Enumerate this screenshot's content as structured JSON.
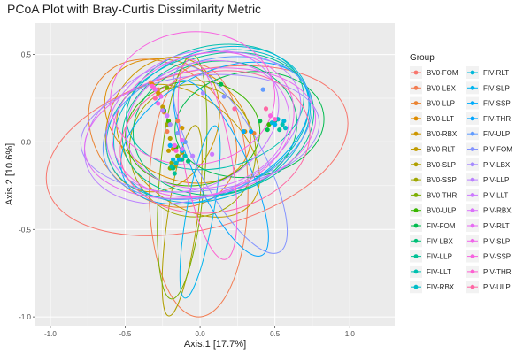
{
  "chart_data": {
    "type": "scatter",
    "title": "PCoA Plot with Bray-Curtis Dissimilarity Metric",
    "xlabel": "Axis.1   [17.7%]",
    "ylabel": "Axis.2   [10.6%]",
    "xlim": [
      -1.1,
      1.3
    ],
    "ylim": [
      -1.05,
      0.68
    ],
    "x_ticks": [
      -1.0,
      -0.5,
      0.0,
      0.5,
      1.0
    ],
    "x_tick_labels": [
      "-1.0",
      "-0.5",
      "0.0",
      "0.5",
      "1.0"
    ],
    "y_ticks": [
      -1.0,
      -0.5,
      0.0,
      0.5
    ],
    "y_tick_labels": [
      "-1.0",
      "-0.5",
      "0.0",
      "0.5"
    ],
    "grid": true,
    "legend_title": "Group",
    "legend_position": "right",
    "legend_columns": 2,
    "series": [
      {
        "name": "BV0-FOM",
        "color": "#F8766D",
        "points": [
          [
            -0.33,
            0.34
          ],
          [
            -0.3,
            0.3
          ],
          [
            -0.27,
            0.27
          ]
        ],
        "ellipse": {
          "cx": -0.02,
          "cy": -0.05,
          "rx": 1.03,
          "ry": 0.45,
          "angle": 14
        }
      },
      {
        "name": "BV0-LBX",
        "color": "#F27D52",
        "points": [
          [
            -0.28,
            0.3
          ],
          [
            -0.22,
            0.06
          ],
          [
            -0.15,
            0.12
          ]
        ],
        "ellipse": {
          "cx": -0.01,
          "cy": -0.28,
          "rx": 0.33,
          "ry": 0.72,
          "angle": 0
        }
      },
      {
        "name": "BV0-LLP",
        "color": "#EA8331",
        "points": [
          [
            -0.24,
            0.17
          ],
          [
            -0.2,
            -0.02
          ],
          [
            0.36,
            0.05
          ]
        ],
        "ellipse": {
          "cx": -0.25,
          "cy": 0.05,
          "rx": 0.55,
          "ry": 0.37,
          "angle": -45
        }
      },
      {
        "name": "BV0-LLT",
        "color": "#DE8C00",
        "points": [
          [
            -0.32,
            0.33
          ],
          [
            -0.18,
            -0.04
          ],
          [
            0.3,
            0.06
          ]
        ],
        "ellipse": {
          "cx": -0.15,
          "cy": 0.12,
          "rx": 0.52,
          "ry": 0.32,
          "angle": -30
        }
      },
      {
        "name": "BV0-RBX",
        "color": "#CD9600",
        "points": [
          [
            -0.28,
            0.28
          ],
          [
            -0.2,
            0.1
          ],
          [
            -0.12,
            0.08
          ]
        ],
        "ellipse": {
          "cx": -0.25,
          "cy": 0.1,
          "rx": 0.36,
          "ry": 0.4,
          "angle": -25
        }
      },
      {
        "name": "BV0-RLT",
        "color": "#C09B00",
        "points": [
          [
            -0.25,
            0.2
          ],
          [
            -0.21,
            -0.05
          ],
          [
            -0.13,
            -0.1
          ]
        ],
        "ellipse": {
          "cx": -0.08,
          "cy": -0.05,
          "rx": 0.55,
          "ry": 0.3,
          "angle": -40
        }
      },
      {
        "name": "BV0-SLP",
        "color": "#B09F00",
        "points": [
          [
            -0.2,
            0.02
          ],
          [
            -0.17,
            -0.14
          ],
          [
            -0.12,
            -0.06
          ]
        ],
        "ellipse": {
          "cx": -0.12,
          "cy": -0.45,
          "rx": 0.1,
          "ry": 0.55,
          "angle": -8
        }
      },
      {
        "name": "BV0-SSP",
        "color": "#9EA700",
        "points": [
          [
            -0.22,
            0.1
          ],
          [
            -0.19,
            -0.12
          ],
          [
            -0.1,
            0.0
          ]
        ],
        "ellipse": {
          "cx": -0.05,
          "cy": -0.05,
          "rx": 0.42,
          "ry": 0.38,
          "angle": 15
        }
      },
      {
        "name": "BV0-THR",
        "color": "#7CAE00",
        "points": [
          [
            -0.22,
            0.31
          ],
          [
            -0.2,
            -0.15
          ],
          [
            -0.15,
            -0.08
          ]
        ],
        "ellipse": {
          "cx": -0.12,
          "cy": -0.2,
          "rx": 0.15,
          "ry": 0.7,
          "angle": -5
        }
      },
      {
        "name": "BV0-ULP",
        "color": "#39B600",
        "points": [
          [
            -0.21,
            0.12
          ],
          [
            -0.16,
            -0.03
          ],
          [
            0.46,
            0.1
          ]
        ],
        "ellipse": {
          "cx": -0.05,
          "cy": 0.05,
          "rx": 0.45,
          "ry": 0.3,
          "angle": 5
        }
      },
      {
        "name": "FIV-FOM",
        "color": "#00BB4E",
        "points": [
          [
            -0.24,
            0.18
          ],
          [
            0.14,
            0.33
          ],
          [
            0.4,
            0.12
          ],
          [
            0.45,
            0.07
          ]
        ],
        "ellipse": {
          "cx": 0.33,
          "cy": 0.1,
          "rx": 0.5,
          "ry": 0.3,
          "angle": 8
        }
      },
      {
        "name": "FIV-LBX",
        "color": "#00BF77",
        "points": [
          [
            -0.18,
            -0.15
          ],
          [
            -0.08,
            -0.11
          ],
          [
            0.5,
            0.12
          ]
        ],
        "ellipse": {
          "cx": 0.1,
          "cy": 0.08,
          "rx": 0.55,
          "ry": 0.38,
          "angle": 10
        }
      },
      {
        "name": "FIV-LLP",
        "color": "#00C094",
        "points": [
          [
            -0.17,
            -0.18
          ],
          [
            -0.12,
            -0.1
          ],
          [
            0.53,
            0.07
          ]
        ],
        "ellipse": {
          "cx": 0.12,
          "cy": 0.1,
          "rx": 0.65,
          "ry": 0.4,
          "angle": 15
        }
      },
      {
        "name": "FIV-LLT",
        "color": "#00C0AF",
        "points": [
          [
            -0.19,
            -0.14
          ],
          [
            -0.1,
            -0.08
          ],
          [
            0.55,
            0.1
          ]
        ],
        "ellipse": {
          "cx": 0.1,
          "cy": 0.2,
          "rx": 0.6,
          "ry": 0.35,
          "angle": 12
        }
      },
      {
        "name": "FIV-RBX",
        "color": "#00BCC7",
        "points": [
          [
            -0.16,
            -0.12
          ],
          [
            0.52,
            0.13
          ],
          [
            0.57,
            0.08
          ]
        ],
        "ellipse": {
          "cx": 0.05,
          "cy": 0.1,
          "rx": 0.7,
          "ry": 0.4,
          "angle": 20
        }
      },
      {
        "name": "FIV-RLT",
        "color": "#00B8D9",
        "points": [
          [
            -0.18,
            -0.1
          ],
          [
            0.48,
            0.11
          ],
          [
            0.56,
            0.12
          ]
        ],
        "ellipse": {
          "cx": 0.08,
          "cy": 0.1,
          "rx": 0.68,
          "ry": 0.42,
          "angle": 22
        }
      },
      {
        "name": "FIV-SLP",
        "color": "#00B4EF",
        "points": [
          [
            -0.12,
            -0.05
          ],
          [
            0.5,
            0.1
          ]
        ],
        "ellipse": {
          "cx": 0.0,
          "cy": -0.4,
          "rx": 0.09,
          "ry": 0.5,
          "angle": -10
        }
      },
      {
        "name": "FIV-SSP",
        "color": "#00ACFC",
        "points": [
          [
            -0.2,
            -0.02
          ],
          [
            0.29,
            0.06
          ]
        ],
        "ellipse": {
          "cx": 0.1,
          "cy": 0.05,
          "rx": 0.68,
          "ry": 0.34,
          "angle": 28
        }
      },
      {
        "name": "FIV-THR",
        "color": "#00A5FF",
        "points": [
          [
            -0.14,
            -0.1
          ],
          [
            0.34,
            0.06
          ]
        ],
        "ellipse": {
          "cx": 0.14,
          "cy": -0.15,
          "rx": 0.18,
          "ry": 0.55,
          "angle": 25
        }
      },
      {
        "name": "FIV-ULP",
        "color": "#619CFF",
        "points": [
          [
            -0.1,
            0.0
          ],
          [
            0.42,
            0.3
          ]
        ],
        "ellipse": {
          "cx": 0.05,
          "cy": 0.08,
          "rx": 0.72,
          "ry": 0.38,
          "angle": 18
        }
      },
      {
        "name": "PIV-FOM",
        "color": "#8494FF",
        "points": [
          [
            -0.15,
            0.05
          ],
          [
            0.16,
            0.26
          ]
        ],
        "ellipse": {
          "cx": 0.2,
          "cy": -0.1,
          "rx": 0.22,
          "ry": 0.6,
          "angle": 28
        }
      },
      {
        "name": "PIV-LBX",
        "color": "#A58AFF",
        "points": [
          [
            -0.2,
            0.1
          ],
          [
            0.02,
            0.28
          ]
        ],
        "ellipse": {
          "cx": 0.0,
          "cy": 0.05,
          "rx": 0.8,
          "ry": 0.33,
          "angle": 6
        }
      },
      {
        "name": "PIV-LLP",
        "color": "#BB81FF",
        "points": [
          [
            -0.25,
            0.18
          ],
          [
            -0.05,
            -0.08
          ]
        ],
        "ellipse": {
          "cx": -0.05,
          "cy": 0.08,
          "rx": 0.75,
          "ry": 0.4,
          "angle": 20
        }
      },
      {
        "name": "PIV-LLT",
        "color": "#CC79FF",
        "points": [
          [
            -0.22,
            0.15
          ],
          [
            0.08,
            -0.07
          ]
        ],
        "ellipse": {
          "cx": -0.05,
          "cy": 0.12,
          "rx": 0.6,
          "ry": 0.38,
          "angle": 25
        }
      },
      {
        "name": "PIV-RBX",
        "color": "#DB72FB",
        "points": [
          [
            -0.3,
            0.3
          ],
          [
            -0.12,
            -0.04
          ]
        ],
        "ellipse": {
          "cx": 0.05,
          "cy": 0.1,
          "rx": 0.55,
          "ry": 0.36,
          "angle": 12
        }
      },
      {
        "name": "PIV-RLT",
        "color": "#E76BF3",
        "points": [
          [
            -0.26,
            0.26
          ],
          [
            -0.12,
            0.01
          ]
        ],
        "ellipse": {
          "cx": 0.0,
          "cy": 0.05,
          "rx": 0.78,
          "ry": 0.36,
          "angle": 10
        }
      },
      {
        "name": "PIV-SLP",
        "color": "#F066EA",
        "points": [
          [
            -0.28,
            0.22
          ],
          [
            -0.17,
            -0.02
          ]
        ],
        "ellipse": {
          "cx": 0.02,
          "cy": 0.1,
          "rx": 0.62,
          "ry": 0.4,
          "angle": 18
        }
      },
      {
        "name": "PIV-SSP",
        "color": "#F763E0",
        "points": [
          [
            -0.31,
            0.31
          ],
          [
            0.47,
            0.15
          ]
        ],
        "ellipse": {
          "cx": -0.05,
          "cy": 0.25,
          "rx": 0.55,
          "ry": 0.38,
          "angle": 5
        }
      },
      {
        "name": "PIV-THR",
        "color": "#FD61D1",
        "points": [
          [
            -0.32,
            0.32
          ],
          [
            -0.16,
            -0.05
          ],
          [
            0.5,
            0.13
          ]
        ],
        "ellipse": {
          "cx": 0.05,
          "cy": -0.1,
          "rx": 0.16,
          "ry": 0.58,
          "angle": 10
        }
      },
      {
        "name": "PIV-ULP",
        "color": "#FF67A4",
        "points": [
          [
            -0.3,
            0.25
          ],
          [
            0.23,
            0.19
          ],
          [
            0.44,
            0.19
          ]
        ],
        "ellipse": {
          "cx": 0.1,
          "cy": 0.0,
          "rx": 0.64,
          "ry": 0.4,
          "angle": 12
        }
      }
    ]
  }
}
